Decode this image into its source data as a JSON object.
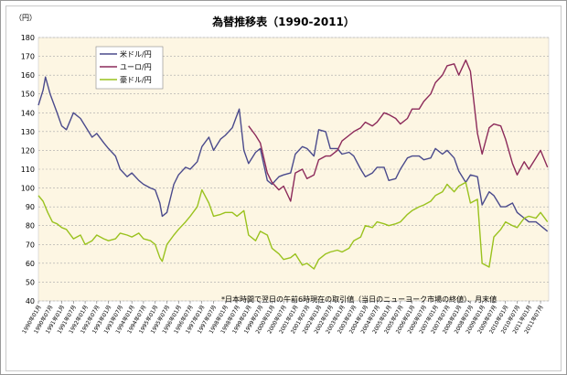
{
  "chart_data": {
    "type": "line",
    "title": "為替推移表（1990-2011）",
    "ylabel": "（円）",
    "ylim": [
      40,
      180
    ],
    "yticks": [
      40,
      50,
      60,
      70,
      80,
      90,
      100,
      110,
      120,
      130,
      140,
      150,
      160,
      170,
      180
    ],
    "grid": true,
    "legend_position": "top-left",
    "xtick_labels": [
      "1990年01月",
      "1990年07月",
      "1991年01月",
      "1991年07月",
      "1992年01月",
      "1992年07月",
      "1993年01月",
      "1993年07月",
      "1994年01月",
      "1994年07月",
      "1995年01月",
      "1995年07月",
      "1996年01月",
      "1996年07月",
      "1997年01月",
      "1997年07月",
      "1998年01月",
      "1998年07月",
      "1999年01月",
      "1999年07月",
      "2000年01月",
      "2000年07月",
      "2001年01月",
      "2001年07月",
      "2002年01月",
      "2002年07月",
      "2003年01月",
      "2003年07月",
      "2004年01月",
      "2004年07月",
      "2005年01月",
      "2005年07月",
      "2006年01月",
      "2006年07月",
      "2007年01月",
      "2007年07月",
      "2008年01月",
      "2008年07月",
      "2009年01月",
      "2009年07月",
      "2010年01月",
      "2010年07月",
      "2011年01月",
      "2011年07月"
    ],
    "annotation": "*日本時間で翌日の午前6時現在の取引値（当日のニューヨーク市場の終値）、月末値",
    "series": [
      {
        "name": "米ドル/円",
        "color": "#4a4a8c",
        "x": [
          1990.0,
          1990.2,
          1990.3,
          1990.5,
          1990.8,
          1991.0,
          1991.2,
          1991.5,
          1991.8,
          1992.0,
          1992.3,
          1992.5,
          1992.8,
          1993.0,
          1993.3,
          1993.5,
          1993.8,
          1994.0,
          1994.3,
          1994.5,
          1994.8,
          1995.0,
          1995.2,
          1995.3,
          1995.5,
          1995.8,
          1996.0,
          1996.3,
          1996.5,
          1996.8,
          1997.0,
          1997.3,
          1997.5,
          1997.8,
          1998.0,
          1998.3,
          1998.6,
          1998.8,
          1999.0,
          1999.3,
          1999.5,
          1999.8,
          2000.0,
          2000.3,
          2000.5,
          2000.8,
          2001.0,
          2001.3,
          2001.5,
          2001.8,
          2002.0,
          2002.3,
          2002.5,
          2002.8,
          2003.0,
          2003.3,
          2003.5,
          2003.8,
          2004.0,
          2004.3,
          2004.5,
          2004.8,
          2005.0,
          2005.3,
          2005.5,
          2005.8,
          2006.0,
          2006.3,
          2006.5,
          2006.8,
          2007.0,
          2007.3,
          2007.5,
          2007.8,
          2008.0,
          2008.3,
          2008.5,
          2008.8,
          2009.0,
          2009.3,
          2009.5,
          2009.8,
          2010.0,
          2010.3,
          2010.5,
          2010.8,
          2011.0,
          2011.3,
          2011.5,
          2011.8
        ],
        "y": [
          144,
          152,
          159,
          150,
          140,
          133,
          131,
          140,
          137,
          133,
          127,
          129,
          124,
          121,
          117,
          110,
          106,
          108,
          104,
          102,
          100,
          99,
          92,
          85,
          87,
          102,
          107,
          111,
          110,
          114,
          122,
          127,
          120,
          126,
          128,
          132,
          142,
          120,
          113,
          119,
          121,
          104,
          102,
          106,
          107,
          108,
          118,
          122,
          121,
          117,
          131,
          130,
          121,
          121,
          118,
          119,
          117,
          110,
          106,
          108,
          111,
          111,
          104,
          105,
          110,
          116,
          117,
          117,
          115,
          116,
          121,
          118,
          120,
          116,
          109,
          103,
          107,
          106,
          91,
          98,
          96,
          90,
          90,
          92,
          87,
          84,
          82,
          82,
          80,
          77
        ]
      },
      {
        "name": "ユーロ/円",
        "color": "#8c2a5a",
        "x": [
          1999.0,
          1999.3,
          1999.5,
          1999.8,
          2000.0,
          2000.3,
          2000.5,
          2000.8,
          2001.0,
          2001.3,
          2001.5,
          2001.8,
          2002.0,
          2002.3,
          2002.5,
          2002.8,
          2003.0,
          2003.3,
          2003.5,
          2003.8,
          2004.0,
          2004.3,
          2004.5,
          2004.8,
          2005.0,
          2005.3,
          2005.5,
          2005.8,
          2006.0,
          2006.3,
          2006.5,
          2006.8,
          2007.0,
          2007.3,
          2007.5,
          2007.8,
          2008.0,
          2008.3,
          2008.5,
          2008.8,
          2009.0,
          2009.3,
          2009.5,
          2009.8,
          2010.0,
          2010.3,
          2010.5,
          2010.8,
          2011.0,
          2011.3,
          2011.5,
          2011.8
        ],
        "y": [
          133,
          128,
          124,
          108,
          103,
          99,
          101,
          93,
          108,
          110,
          105,
          107,
          115,
          117,
          117,
          120,
          125,
          128,
          130,
          132,
          135,
          133,
          135,
          140,
          139,
          137,
          134,
          137,
          142,
          142,
          146,
          150,
          156,
          160,
          165,
          166,
          160,
          168,
          162,
          129,
          118,
          132,
          134,
          133,
          126,
          113,
          107,
          114,
          110,
          116,
          120,
          111
        ]
      },
      {
        "name": "豪ドル/円",
        "color": "#9ac21e",
        "x": [
          1990.0,
          1990.2,
          1990.4,
          1990.6,
          1990.8,
          1991.0,
          1991.2,
          1991.5,
          1991.8,
          1992.0,
          1992.3,
          1992.5,
          1992.8,
          1993.0,
          1993.3,
          1993.5,
          1993.8,
          1994.0,
          1994.3,
          1994.5,
          1994.8,
          1995.0,
          1995.2,
          1995.3,
          1995.5,
          1995.8,
          1996.0,
          1996.3,
          1996.5,
          1996.8,
          1997.0,
          1997.3,
          1997.5,
          1997.8,
          1998.0,
          1998.3,
          1998.5,
          1998.8,
          1999.0,
          1999.3,
          1999.5,
          1999.8,
          2000.0,
          2000.3,
          2000.5,
          2000.8,
          2001.0,
          2001.3,
          2001.5,
          2001.8,
          2002.0,
          2002.3,
          2002.5,
          2002.8,
          2003.0,
          2003.3,
          2003.5,
          2003.8,
          2004.0,
          2004.3,
          2004.5,
          2004.8,
          2005.0,
          2005.3,
          2005.5,
          2005.8,
          2006.0,
          2006.3,
          2006.5,
          2006.8,
          2007.0,
          2007.3,
          2007.5,
          2007.8,
          2008.0,
          2008.3,
          2008.5,
          2008.8,
          2009.0,
          2009.3,
          2009.5,
          2009.8,
          2010.0,
          2010.3,
          2010.5,
          2010.8,
          2011.0,
          2011.3,
          2011.5,
          2011.8
        ],
        "y": [
          96,
          93,
          87,
          82,
          81,
          79,
          78,
          73,
          75,
          70,
          72,
          75,
          73,
          72,
          73,
          76,
          75,
          74,
          76,
          73,
          72,
          70,
          63,
          61,
          70,
          75,
          78,
          82,
          85,
          90,
          99,
          92,
          85,
          86,
          87,
          87,
          85,
          88,
          75,
          72,
          77,
          75,
          68,
          65,
          62,
          63,
          65,
          59,
          60,
          57,
          62,
          65,
          66,
          67,
          66,
          68,
          72,
          74,
          80,
          79,
          82,
          81,
          80,
          81,
          82,
          86,
          88,
          90,
          91,
          93,
          96,
          98,
          102,
          98,
          101,
          103,
          92,
          94,
          60,
          58,
          74,
          78,
          82,
          80,
          79,
          84,
          85,
          84,
          87,
          82
        ]
      }
    ]
  }
}
